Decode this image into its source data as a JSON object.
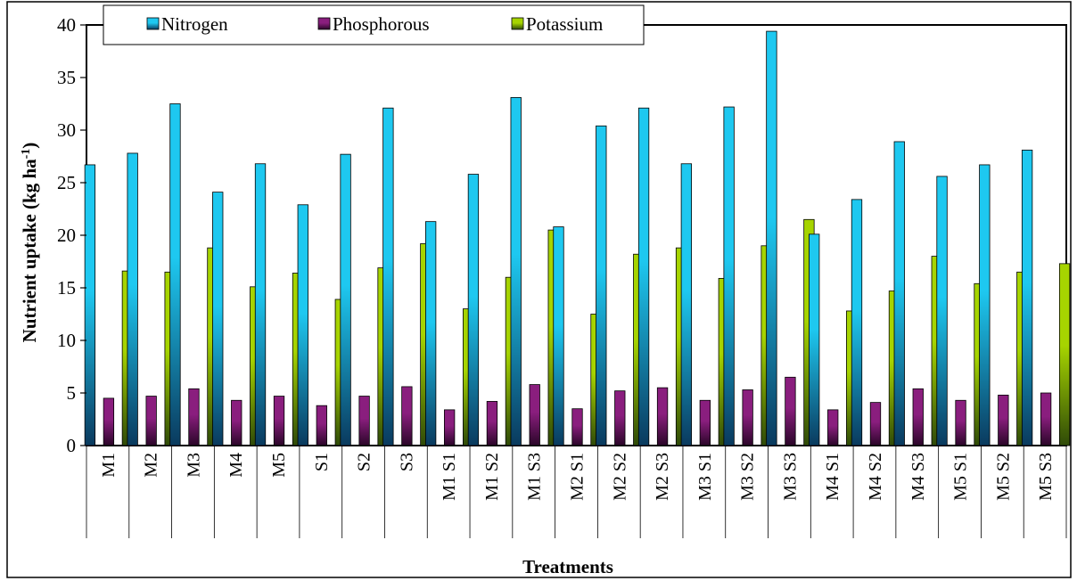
{
  "chart_data": {
    "type": "bar",
    "title": "",
    "xlabel": "Treatments",
    "ylabel": "Nutrient uptake  (kg ha",
    "ylabel_superscript": "-1",
    "ylabel_suffix": ")",
    "ylim": [
      0,
      40
    ],
    "yticks": [
      "0",
      "5",
      "10",
      "15",
      "20",
      "25",
      "30",
      "35",
      "40"
    ],
    "grid": false,
    "legend_position": "top-left",
    "categories": [
      "M1",
      "M2",
      "M3",
      "M4",
      "M5",
      "S1",
      "S2",
      "S3",
      "M1 S1",
      "M1 S2",
      "M1 S3",
      "M2 S1",
      "M2 S2",
      "M2 S3",
      "M3 S1",
      "M3 S2",
      "M3 S3",
      "M4 S1",
      "M4 S2",
      "M4 S3",
      "M5 S1",
      "M5 S2",
      "M5 S3"
    ],
    "series": [
      {
        "name": "Nitrogen",
        "color": "#1ec8f0",
        "color_dark": "#0a3a5e",
        "values": [
          26.7,
          27.8,
          32.5,
          24.1,
          26.8,
          22.9,
          27.7,
          32.1,
          21.3,
          25.8,
          33.1,
          20.8,
          30.4,
          32.1,
          26.8,
          32.2,
          39.4,
          20.1,
          23.4,
          28.9,
          25.6,
          26.7,
          28.1
        ]
      },
      {
        "name": "Phosphorous",
        "color": "#8a1e7e",
        "color_dark": "#2a0628",
        "values": [
          4.5,
          4.7,
          5.4,
          4.3,
          4.7,
          3.8,
          4.7,
          5.6,
          3.4,
          4.2,
          5.8,
          3.5,
          5.2,
          5.5,
          4.3,
          5.3,
          6.5,
          3.4,
          4.1,
          5.4,
          4.3,
          4.8,
          5.0
        ]
      },
      {
        "name": "Potassium",
        "color": "#a6d400",
        "color_dark": "#2f4a08",
        "values": [
          16.6,
          16.5,
          18.8,
          15.1,
          16.4,
          13.9,
          16.9,
          19.2,
          13.0,
          16.0,
          20.5,
          12.5,
          18.2,
          18.8,
          15.9,
          19.0,
          21.5,
          12.8,
          14.7,
          18.0,
          15.4,
          16.5,
          17.3
        ]
      }
    ]
  }
}
